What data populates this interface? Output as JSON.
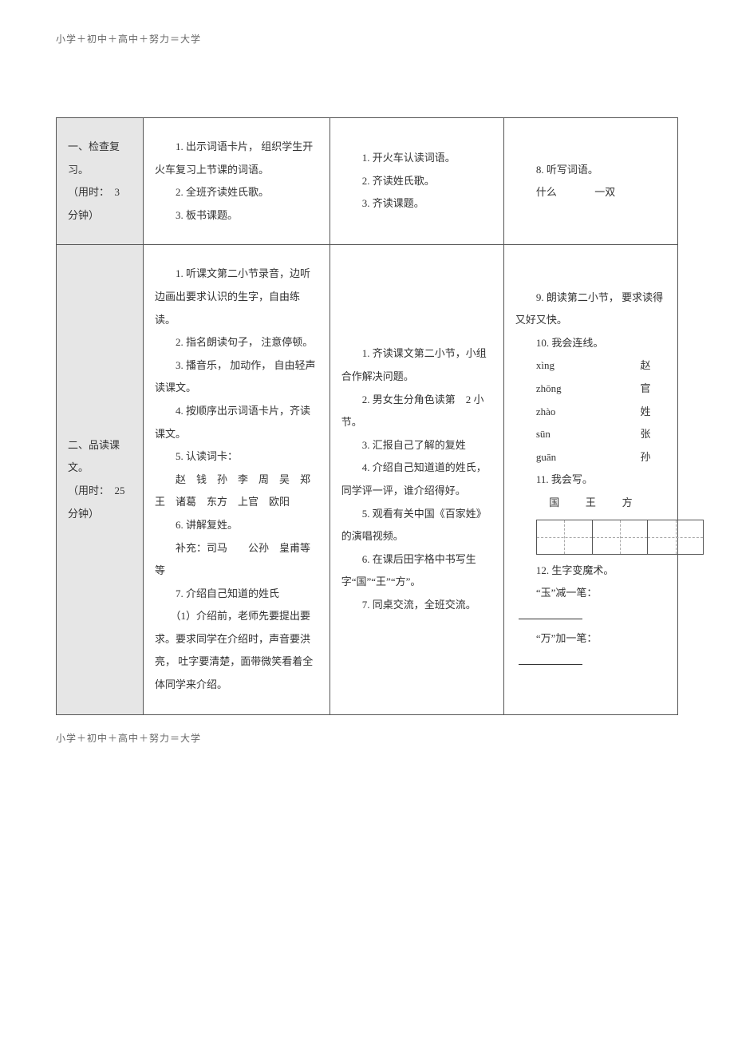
{
  "header_text": "小学＋初中＋高中＋努力＝大学",
  "footer_text": "小学＋初中＋高中＋努力＝大学",
  "colors": {
    "border": "#555555",
    "section_bg": "#e6e6e6",
    "text": "#333333",
    "muted": "#666666",
    "dash": "#aaaaaa",
    "bg": "#ffffff"
  },
  "rows": [
    {
      "section": {
        "title": "一、检查复习。",
        "time": "（用时：　3 分钟）"
      },
      "col2": [
        "1. 出示词语卡片， 组织学生开火车复习上节课的词语。",
        "2. 全班齐读姓氏歌。",
        "3. 板书课题。"
      ],
      "col3": [
        "1. 开火车认读词语。",
        "2. 齐读姓氏歌。",
        "3. 齐读课题。"
      ],
      "col4": {
        "item8_label": "8. 听写词语。",
        "dict_left": "什么",
        "dict_right": "一双"
      }
    },
    {
      "section": {
        "title": "二、品读课文。",
        "time": "（用时：　25 分钟）"
      },
      "col2": [
        "1. 听课文第二小节录音，边听边画出要求认识的生字，自由练读。",
        "2. 指名朗读句子， 注意停顿。",
        "3. 播音乐， 加动作， 自由轻声读课文。",
        "4. 按顺序出示词语卡片，齐读课文。",
        "5. 认读词卡：",
        "　　赵　钱　孙　李　周　吴　郑　王　诸葛　东方　上官　欧阳",
        "6. 讲解复姓。",
        "　　补充：司马　　公孙　皇甫等等",
        "7. 介绍自己知道的姓氏",
        "　　（1）介绍前，老师先要提出要求。要求同学在介绍时，声音要洪亮， 吐字要清楚，面带微笑看着全体同学来介绍。"
      ],
      "col3": [
        "1. 齐读课文第二小节，小组合作解决问题。",
        "2. 男女生分角色读第　2 小节。",
        "3. 汇报自己了解的复姓",
        "4. 介绍自己知道道的姓氏，同学评一评，谁介绍得好。",
        "5. 观看有关中国《百家姓》的演唱视频。",
        "6. 在课后田字格中书写生字“国”“王”“方”。",
        "7. 同桌交流，全班交流。"
      ],
      "col4": {
        "item9": "9. 朗读第二小节， 要求读得又好又快。",
        "item10_label": "10. 我会连线。",
        "pairs": [
          {
            "pinyin": "xìng",
            "char": "赵"
          },
          {
            "pinyin": "zhōng",
            "char": "官"
          },
          {
            "pinyin": "zhào",
            "char": "姓"
          },
          {
            "pinyin": "sūn",
            "char": "张"
          },
          {
            "pinyin": "guān",
            "char": "孙"
          }
        ],
        "item11_label": "11. 我会写。",
        "chars": [
          "国",
          "王",
          "方"
        ],
        "item12_label": "12. 生字变魔术。",
        "magic": [
          "“玉”减一笔：",
          "“万”加一笔："
        ]
      }
    }
  ]
}
